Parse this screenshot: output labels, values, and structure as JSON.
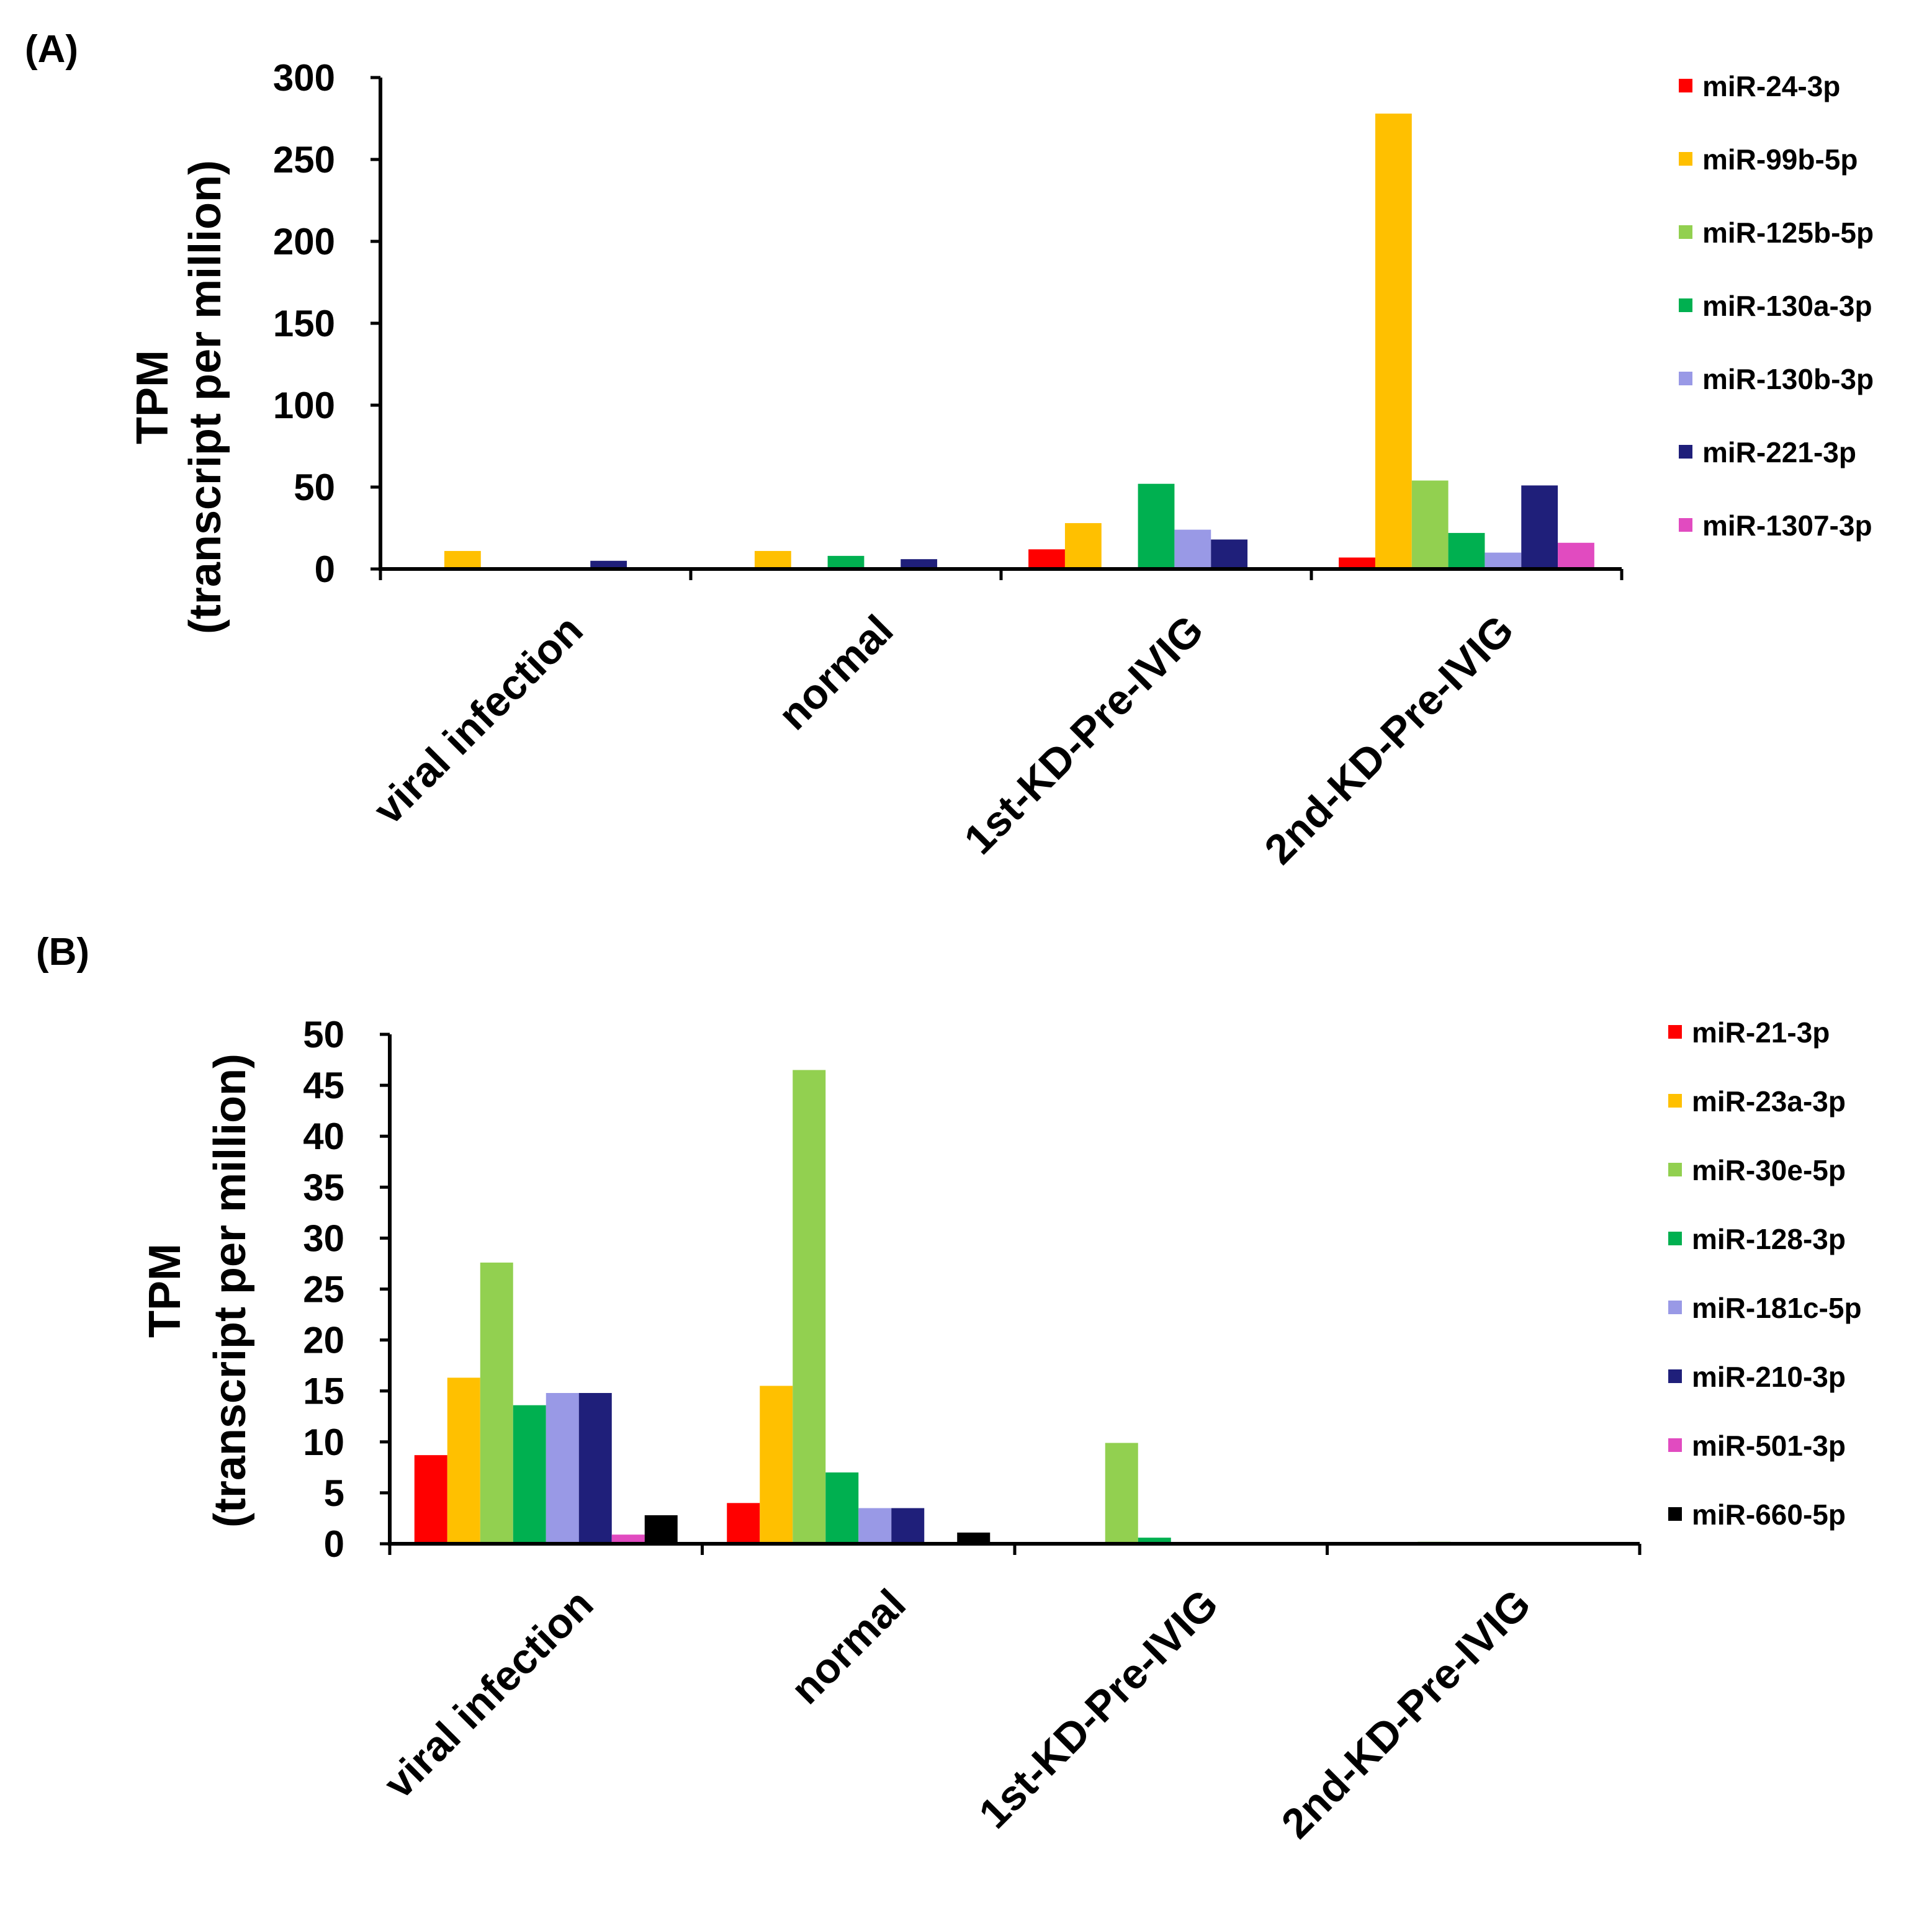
{
  "figure": {
    "charts": [
      {
        "panel": "(A)",
        "type": "bar",
        "ylabel_line1": "TPM",
        "ylabel_line2": "(transcript per million)",
        "ylim": [
          0,
          300
        ],
        "yticks": [
          0,
          50,
          100,
          150,
          200,
          250,
          300
        ],
        "categories": [
          "viral infection",
          "normal",
          "1st-KD-Pre-IVIG",
          "2nd-KD-Pre-IVIG"
        ],
        "series": [
          {
            "name": "miR-24-3p",
            "color": "#ff0000",
            "values": [
              0,
              0,
              12,
              7
            ]
          },
          {
            "name": "miR-99b-5p",
            "color": "#ffc000",
            "values": [
              11,
              11,
              28,
              278
            ]
          },
          {
            "name": "miR-125b-5p",
            "color": "#92d050",
            "values": [
              0,
              0,
              0,
              54
            ]
          },
          {
            "name": "miR-130a-3p",
            "color": "#00b050",
            "values": [
              0,
              8,
              52,
              22
            ]
          },
          {
            "name": "miR-130b-3p",
            "color": "#9999e6",
            "values": [
              0,
              0,
              24,
              10
            ]
          },
          {
            "name": "miR-221-3p",
            "color": "#1f1f7a",
            "values": [
              5,
              6,
              18,
              51
            ]
          },
          {
            "name": "miR-1307-3p",
            "color": "#e14bc0",
            "values": [
              0,
              0,
              0,
              16
            ]
          }
        ]
      },
      {
        "panel": "(B)",
        "type": "bar",
        "ylabel_line1": "TPM",
        "ylabel_line2": "(transcript per million)",
        "ylim": [
          0,
          50
        ],
        "yticks": [
          0,
          5,
          10,
          15,
          20,
          25,
          30,
          35,
          40,
          45,
          50
        ],
        "categories": [
          "viral infection",
          "normal",
          "1st-KD-Pre-IVIG",
          "2nd-KD-Pre-IVIG"
        ],
        "series": [
          {
            "name": "miR-21-3p",
            "color": "#ff0000",
            "values": [
              8.7,
              4.0,
              0,
              0
            ]
          },
          {
            "name": "miR-23a-3p",
            "color": "#ffc000",
            "values": [
              16.3,
              15.5,
              0,
              0
            ]
          },
          {
            "name": "miR-30e-5p",
            "color": "#92d050",
            "values": [
              27.6,
              46.5,
              9.9,
              0.2
            ]
          },
          {
            "name": "miR-128-3p",
            "color": "#00b050",
            "values": [
              13.6,
              7.0,
              0.6,
              0
            ]
          },
          {
            "name": "miR-181c-5p",
            "color": "#9999e6",
            "values": [
              14.8,
              3.5,
              0,
              0
            ]
          },
          {
            "name": "miR-210-3p",
            "color": "#1f1f7a",
            "values": [
              14.8,
              3.5,
              0,
              0
            ]
          },
          {
            "name": "miR-501-3p",
            "color": "#e14bc0",
            "values": [
              0.9,
              0,
              0,
              0
            ]
          },
          {
            "name": "miR-660-5p",
            "color": "#000000",
            "values": [
              2.8,
              1.1,
              0,
              0
            ]
          }
        ]
      }
    ]
  },
  "chart_data": [
    {
      "type": "bar",
      "title": "(A)",
      "xlabel": "",
      "ylabel": "TPM (transcript per million)",
      "ylim": [
        0,
        300
      ],
      "categories": [
        "viral infection",
        "normal",
        "1st-KD-Pre-IVIG",
        "2nd-KD-Pre-IVIG"
      ],
      "series": [
        {
          "name": "miR-24-3p",
          "values": [
            0,
            0,
            12,
            7
          ]
        },
        {
          "name": "miR-99b-5p",
          "values": [
            11,
            11,
            28,
            278
          ]
        },
        {
          "name": "miR-125b-5p",
          "values": [
            0,
            0,
            0,
            54
          ]
        },
        {
          "name": "miR-130a-3p",
          "values": [
            0,
            8,
            52,
            22
          ]
        },
        {
          "name": "miR-130b-3p",
          "values": [
            0,
            0,
            24,
            10
          ]
        },
        {
          "name": "miR-221-3p",
          "values": [
            5,
            6,
            18,
            51
          ]
        },
        {
          "name": "miR-1307-3p",
          "values": [
            0,
            0,
            0,
            16
          ]
        }
      ],
      "legend": "right"
    },
    {
      "type": "bar",
      "title": "(B)",
      "xlabel": "",
      "ylabel": "TPM (transcript per million)",
      "ylim": [
        0,
        50
      ],
      "categories": [
        "viral infection",
        "normal",
        "1st-KD-Pre-IVIG",
        "2nd-KD-Pre-IVIG"
      ],
      "series": [
        {
          "name": "miR-21-3p",
          "values": [
            8.7,
            4.0,
            0,
            0
          ]
        },
        {
          "name": "miR-23a-3p",
          "values": [
            16.3,
            15.5,
            0,
            0
          ]
        },
        {
          "name": "miR-30e-5p",
          "values": [
            27.6,
            46.5,
            9.9,
            0.2
          ]
        },
        {
          "name": "miR-128-3p",
          "values": [
            13.6,
            7.0,
            0.6,
            0
          ]
        },
        {
          "name": "miR-181c-5p",
          "values": [
            14.8,
            3.5,
            0,
            0
          ]
        },
        {
          "name": "miR-210-3p",
          "values": [
            14.8,
            3.5,
            0,
            0
          ]
        },
        {
          "name": "miR-501-3p",
          "values": [
            0.9,
            0,
            0,
            0
          ]
        },
        {
          "name": "miR-660-5p",
          "values": [
            2.8,
            1.1,
            0,
            0
          ]
        }
      ],
      "legend": "right"
    }
  ]
}
